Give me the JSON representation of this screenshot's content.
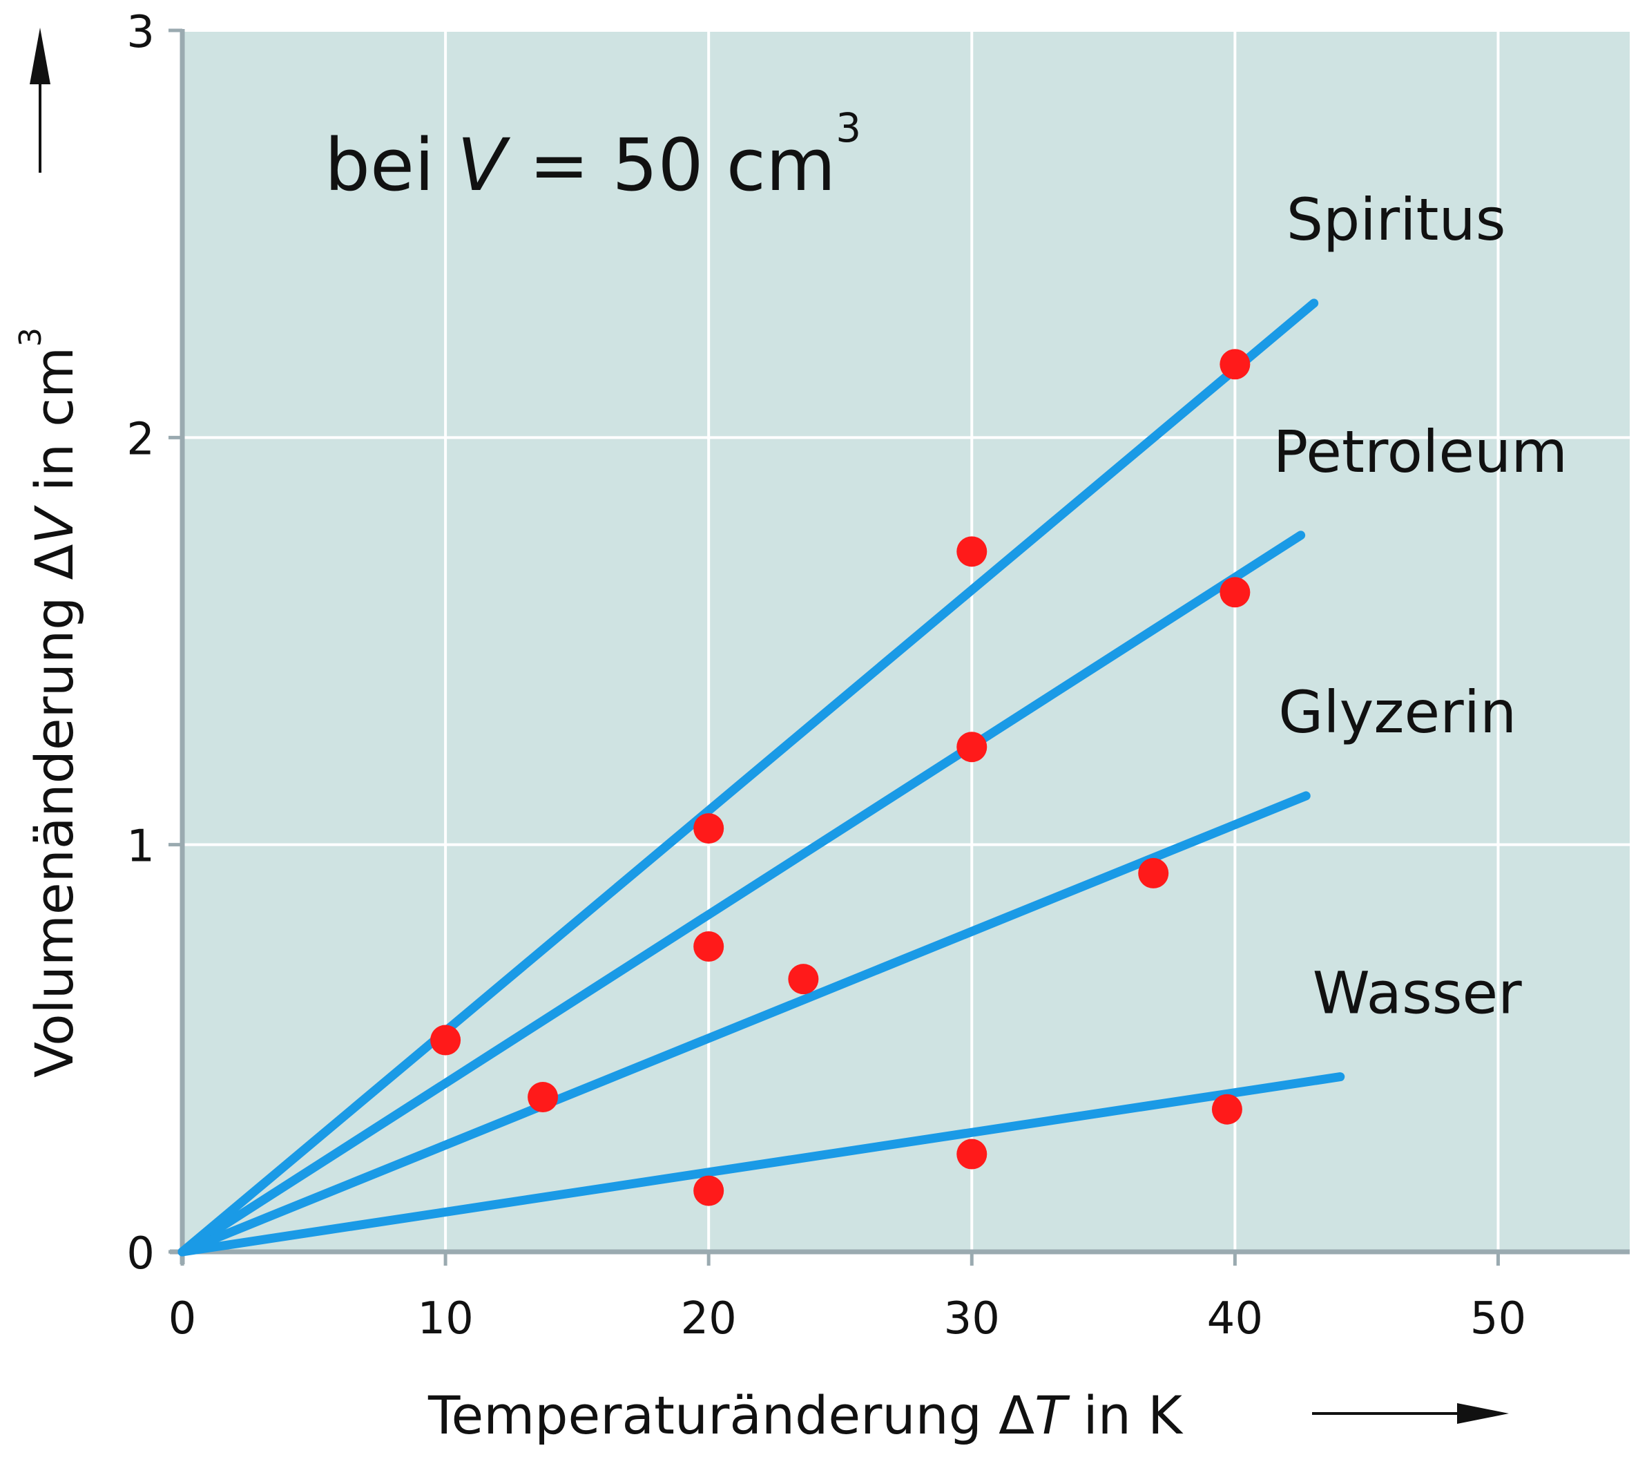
{
  "chart_data": {
    "type": "scatter",
    "annotation": {
      "prefix": "bei ",
      "var": "V",
      "eq": " = 50 cm",
      "sup": "3"
    },
    "xlabel": {
      "prefix": "Temperaturänderung ",
      "delta": "Δ",
      "var": "T",
      "suffix": "  in K"
    },
    "ylabel": {
      "prefix": "Volumenänderung ",
      "delta": "Δ",
      "var": "V",
      "suffix": " in cm",
      "sup": "3"
    },
    "xlim": [
      0,
      55
    ],
    "ylim": [
      0,
      3
    ],
    "xticks": [
      0,
      10,
      20,
      30,
      40,
      50
    ],
    "yticks": [
      0,
      1,
      2,
      3
    ],
    "grid": true,
    "colors": {
      "plot_bg": "#cfe3e2",
      "grid": "#ffffff",
      "axis": "#9aaab0",
      "line": "#1a9ae6",
      "point": "#ff1a1a"
    },
    "series": [
      {
        "name": "Spiritus",
        "fit": [
          [
            0,
            0
          ],
          [
            43,
            2.33
          ]
        ],
        "points": [
          [
            10,
            0.52
          ],
          [
            20,
            1.04
          ],
          [
            30,
            1.72
          ],
          [
            40,
            2.18
          ]
        ]
      },
      {
        "name": "Petroleum",
        "fit": [
          [
            0,
            0
          ],
          [
            42.5,
            1.76
          ]
        ],
        "points": [
          [
            20,
            0.75
          ],
          [
            30,
            1.24
          ],
          [
            40,
            1.62
          ]
        ]
      },
      {
        "name": "Glyzerin",
        "fit": [
          [
            0,
            0
          ],
          [
            42.7,
            1.12
          ]
        ],
        "points": [
          [
            13.7,
            0.38
          ],
          [
            23.6,
            0.67
          ],
          [
            36.9,
            0.93
          ]
        ]
      },
      {
        "name": "Wasser",
        "fit": [
          [
            0,
            0
          ],
          [
            44,
            0.43
          ]
        ],
        "points": [
          [
            20,
            0.15
          ],
          [
            30,
            0.24
          ],
          [
            39.7,
            0.35
          ]
        ]
      }
    ]
  }
}
